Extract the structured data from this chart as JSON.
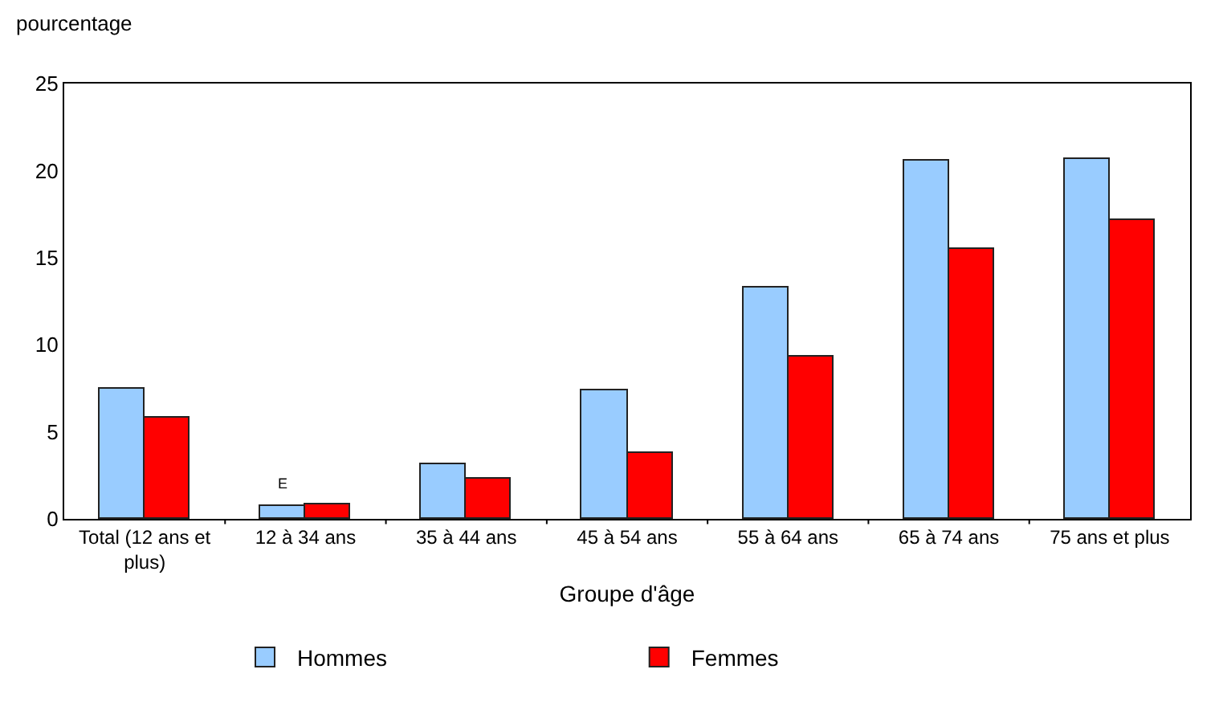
{
  "chart_data": {
    "type": "bar",
    "ylabel": "pourcentage",
    "xlabel": "Groupe d'âge",
    "categories": [
      "Total (12 ans et plus)",
      "12 à 34 ans",
      "35 à 44 ans",
      "45 à 54 ans",
      "55 à 64 ans",
      "65 à 74 ans",
      "75 ans et plus"
    ],
    "series": [
      {
        "name": "Hommes",
        "color": "#99ccff",
        "values": [
          7.5,
          0.7,
          3.1,
          7.4,
          13.3,
          20.6,
          20.7
        ]
      },
      {
        "name": "Femmes",
        "color": "#ff0000",
        "values": [
          5.8,
          0.8,
          2.3,
          3.8,
          9.3,
          15.5,
          17.2
        ]
      }
    ],
    "ylim": [
      0,
      25
    ],
    "yticks": [
      0,
      5,
      10,
      15,
      20,
      25
    ],
    "grid": false,
    "legend": "bottom",
    "annotations": [
      {
        "text": "E",
        "x": "12 à 34 ans",
        "y": 0.7
      }
    ]
  }
}
